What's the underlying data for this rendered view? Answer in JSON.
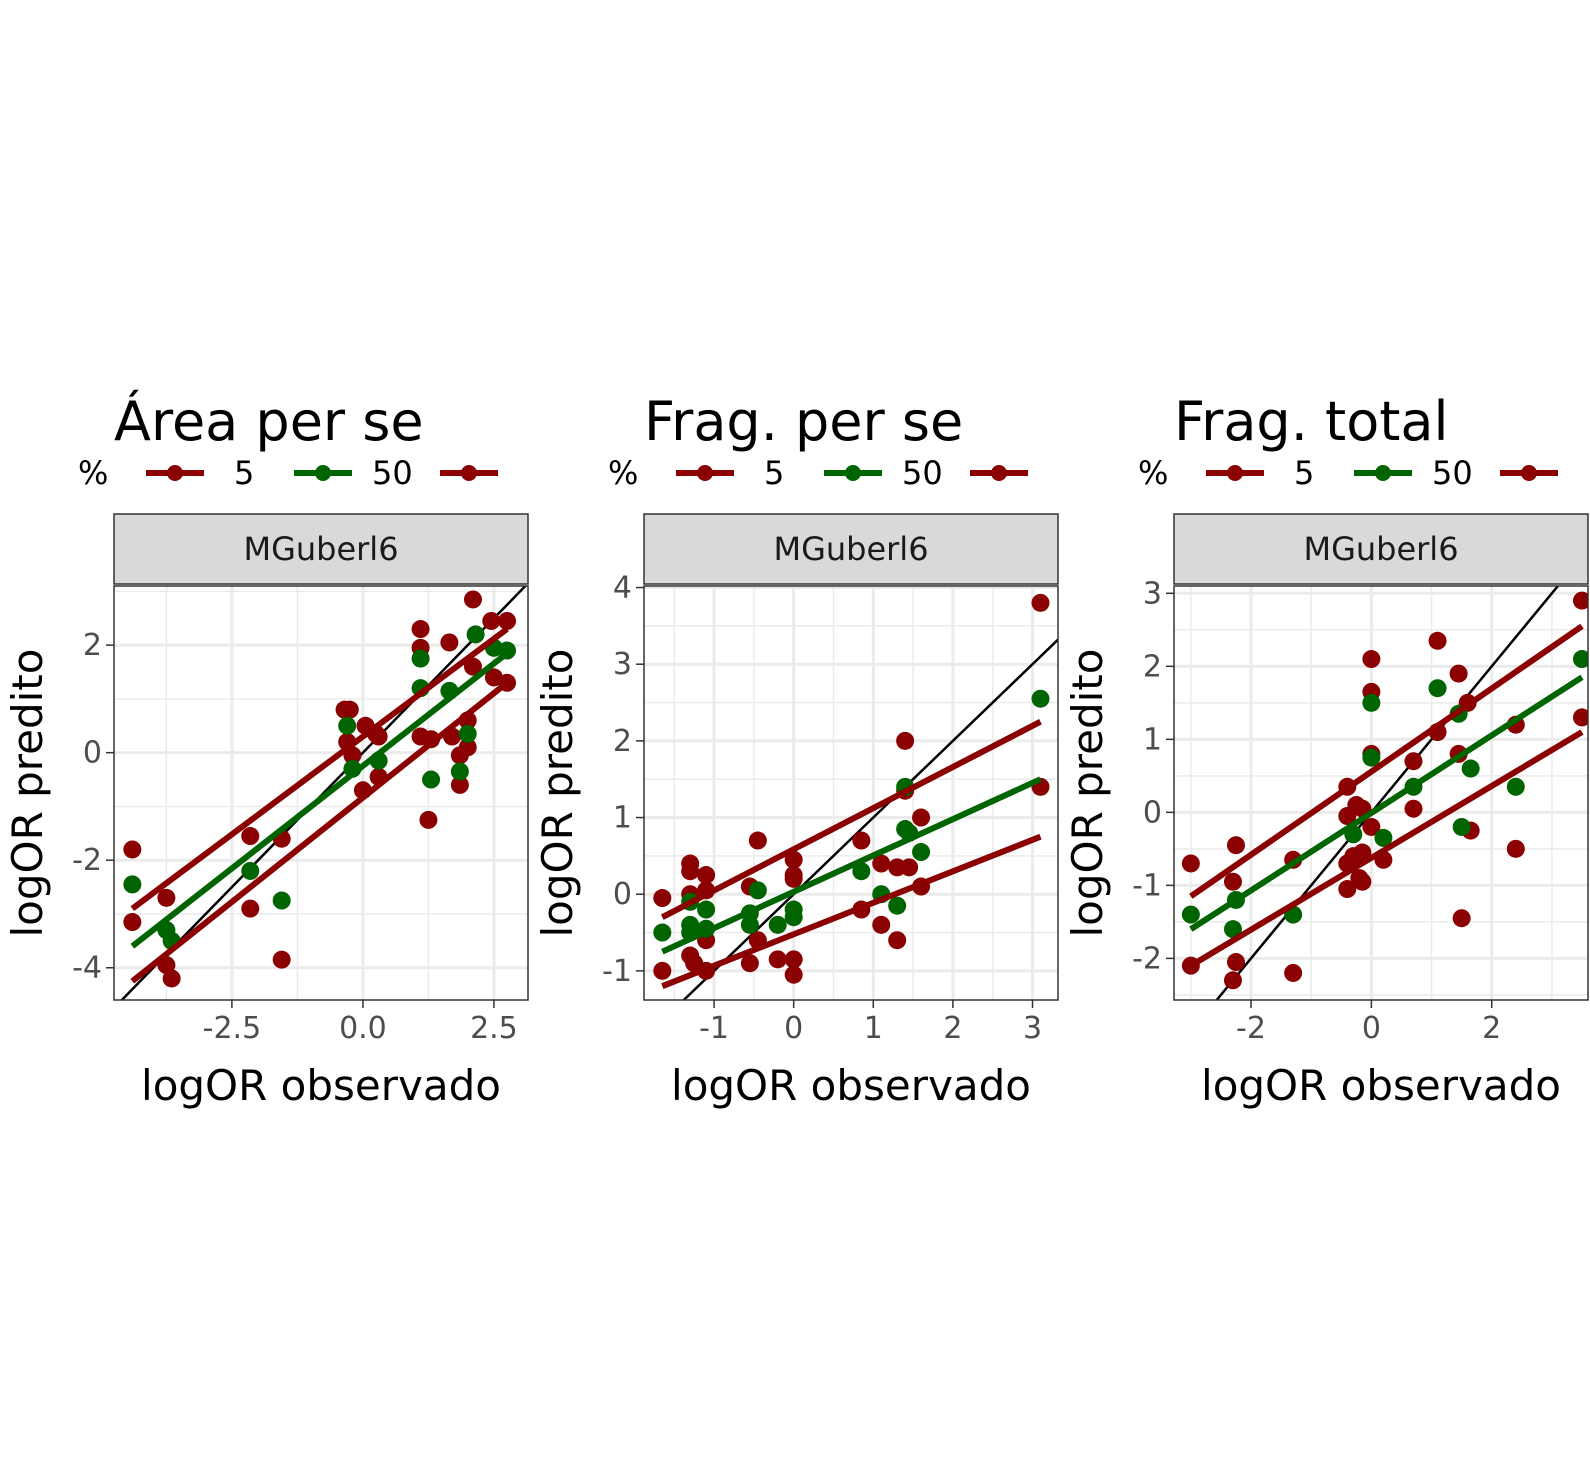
{
  "colors": {
    "low": "#8b0000",
    "mid": "#006400",
    "identity": "#000000",
    "grid": "#ebebeb",
    "strip": "#d9d9d9"
  },
  "chart_data": [
    {
      "type": "scatter",
      "title": "Área per se",
      "strip": "MGuberl6",
      "xlabel": "logOR observado",
      "ylabel": "logOR predito",
      "legend": {
        "title": "%",
        "labels": [
          "5",
          "50",
          ""
        ],
        "placement": "top"
      },
      "xlim": [
        -4.75,
        3.15
      ],
      "ylim": [
        -4.6,
        3.1
      ],
      "xticks": [
        -2.5,
        0.0,
        2.5
      ],
      "xtick_labels": [
        "-2.5",
        "0.0",
        "2.5"
      ],
      "yticks": [
        -4,
        -2,
        0,
        2
      ],
      "ytick_labels": [
        "-4",
        "-2",
        "0",
        "2"
      ],
      "identity_line": true,
      "grid": true,
      "series": [
        {
          "color": "low",
          "points": [
            [
              -4.4,
              -1.8
            ],
            [
              -4.4,
              -3.15
            ],
            [
              -3.75,
              -2.7
            ],
            [
              -3.75,
              -3.95
            ],
            [
              -3.65,
              -4.2
            ],
            [
              -2.15,
              -1.55
            ],
            [
              -2.15,
              -2.9
            ],
            [
              -1.55,
              -1.6
            ],
            [
              -1.55,
              -3.85
            ],
            [
              -0.35,
              0.8
            ],
            [
              -0.3,
              0.2
            ],
            [
              -0.25,
              0.8
            ],
            [
              -0.2,
              -0.05
            ],
            [
              0.0,
              -0.7
            ],
            [
              0.05,
              0.5
            ],
            [
              0.25,
              0.35
            ],
            [
              0.3,
              0.3
            ],
            [
              0.3,
              -0.45
            ],
            [
              1.1,
              2.3
            ],
            [
              1.1,
              1.95
            ],
            [
              1.1,
              0.3
            ],
            [
              1.25,
              -1.25
            ],
            [
              1.3,
              0.25
            ],
            [
              1.65,
              2.05
            ],
            [
              1.7,
              0.3
            ],
            [
              1.85,
              -0.05
            ],
            [
              1.85,
              -0.6
            ],
            [
              2.0,
              0.6
            ],
            [
              2.0,
              0.1
            ],
            [
              2.1,
              2.85
            ],
            [
              2.1,
              1.6
            ],
            [
              2.45,
              2.45
            ],
            [
              2.5,
              1.4
            ],
            [
              2.75,
              2.45
            ],
            [
              2.75,
              1.3
            ]
          ],
          "fit": [
            [
              -4.4,
              -2.9
            ],
            [
              2.75,
              2.3
            ]
          ]
        },
        {
          "color": "mid",
          "points": [
            [
              -4.4,
              -2.45
            ],
            [
              -3.75,
              -3.3
            ],
            [
              -3.65,
              -3.5
            ],
            [
              -2.15,
              -2.2
            ],
            [
              -1.55,
              -2.75
            ],
            [
              -0.3,
              0.5
            ],
            [
              -0.2,
              -0.3
            ],
            [
              0.3,
              -0.15
            ],
            [
              1.1,
              1.75
            ],
            [
              1.1,
              1.2
            ],
            [
              1.3,
              -0.5
            ],
            [
              1.65,
              1.15
            ],
            [
              1.85,
              -0.35
            ],
            [
              2.0,
              0.35
            ],
            [
              2.15,
              2.2
            ],
            [
              2.5,
              1.95
            ],
            [
              2.75,
              1.9
            ]
          ],
          "fit": [
            [
              -4.4,
              -3.6
            ],
            [
              2.75,
              1.85
            ]
          ]
        },
        {
          "color": "low",
          "points": [],
          "fit": [
            [
              -4.4,
              -4.25
            ],
            [
              2.75,
              1.3
            ]
          ]
        }
      ]
    },
    {
      "type": "scatter",
      "title": "Frag. per se",
      "strip": "MGuberl6",
      "xlabel": "logOR observado",
      "ylabel": "logOR predito",
      "legend": {
        "title": "%",
        "labels": [
          "5",
          "50",
          ""
        ],
        "placement": "top"
      },
      "xlim": [
        -1.88,
        3.32
      ],
      "ylim": [
        -1.38,
        4.02
      ],
      "xticks": [
        -1,
        0,
        1,
        2,
        3
      ],
      "xtick_labels": [
        "-1",
        "0",
        "1",
        "2",
        "3"
      ],
      "yticks": [
        -1,
        0,
        1,
        2,
        3,
        4
      ],
      "ytick_labels": [
        "-1",
        "0",
        "1",
        "2",
        "3",
        "4"
      ],
      "identity_line": true,
      "grid": true,
      "series": [
        {
          "color": "low",
          "points": [
            [
              -1.65,
              -0.05
            ],
            [
              -1.65,
              -1.0
            ],
            [
              -1.3,
              0.4
            ],
            [
              -1.3,
              0.3
            ],
            [
              -1.3,
              0.0
            ],
            [
              -1.3,
              -0.8
            ],
            [
              -1.25,
              -0.9
            ],
            [
              -1.1,
              0.25
            ],
            [
              -1.1,
              0.05
            ],
            [
              -1.1,
              -0.6
            ],
            [
              -1.1,
              -1.0
            ],
            [
              -0.55,
              0.1
            ],
            [
              -0.55,
              -0.9
            ],
            [
              -0.45,
              0.7
            ],
            [
              -0.45,
              -0.6
            ],
            [
              -0.2,
              -0.85
            ],
            [
              0.0,
              0.45
            ],
            [
              0.0,
              0.25
            ],
            [
              0.0,
              0.2
            ],
            [
              0.0,
              -0.85
            ],
            [
              0.0,
              -1.05
            ],
            [
              0.85,
              0.7
            ],
            [
              0.85,
              -0.2
            ],
            [
              1.1,
              0.4
            ],
            [
              1.1,
              -0.4
            ],
            [
              1.3,
              0.35
            ],
            [
              1.3,
              -0.6
            ],
            [
              1.4,
              2.0
            ],
            [
              1.4,
              1.35
            ],
            [
              1.45,
              0.35
            ],
            [
              1.6,
              1.0
            ],
            [
              1.6,
              0.1
            ],
            [
              3.1,
              3.8
            ],
            [
              3.1,
              1.4
            ]
          ],
          "fit": [
            [
              -1.65,
              -0.3
            ],
            [
              3.1,
              2.25
            ]
          ]
        },
        {
          "color": "mid",
          "points": [
            [
              -1.65,
              -0.5
            ],
            [
              -1.3,
              -0.1
            ],
            [
              -1.3,
              -0.4
            ],
            [
              -1.3,
              -0.5
            ],
            [
              -1.1,
              -0.2
            ],
            [
              -1.1,
              -0.45
            ],
            [
              -0.55,
              -0.25
            ],
            [
              -0.55,
              -0.4
            ],
            [
              -0.45,
              0.05
            ],
            [
              -0.2,
              -0.4
            ],
            [
              0.0,
              -0.2
            ],
            [
              0.0,
              -0.3
            ],
            [
              0.85,
              0.3
            ],
            [
              1.1,
              0.0
            ],
            [
              1.3,
              -0.15
            ],
            [
              1.4,
              1.4
            ],
            [
              1.4,
              0.85
            ],
            [
              1.45,
              0.8
            ],
            [
              1.6,
              0.55
            ],
            [
              3.1,
              2.55
            ]
          ],
          "fit": [
            [
              -1.65,
              -0.75
            ],
            [
              3.1,
              1.5
            ]
          ]
        },
        {
          "color": "low",
          "points": [],
          "fit": [
            [
              -1.65,
              -1.2
            ],
            [
              3.1,
              0.75
            ]
          ]
        }
      ]
    },
    {
      "type": "scatter",
      "title": "Frag. total",
      "strip": "MGuberl6",
      "xlabel": "logOR observado",
      "ylabel": "logOR predito",
      "legend": {
        "title": "%",
        "labels": [
          "5",
          "50",
          ""
        ],
        "placement": "top"
      },
      "xlim": [
        -3.28,
        3.6
      ],
      "ylim": [
        -2.57,
        3.1
      ],
      "xticks": [
        -2,
        0,
        2
      ],
      "xtick_labels": [
        "-2",
        "0",
        "2"
      ],
      "yticks": [
        -2,
        -1,
        0,
        1,
        2,
        3
      ],
      "ytick_labels": [
        "-2",
        "-1",
        "0",
        "1",
        "2",
        "3"
      ],
      "identity_line": true,
      "grid": true,
      "series": [
        {
          "color": "low",
          "points": [
            [
              -3.0,
              -0.7
            ],
            [
              -3.0,
              -2.1
            ],
            [
              -2.3,
              -0.95
            ],
            [
              -2.3,
              -2.3
            ],
            [
              -2.25,
              -0.45
            ],
            [
              -2.25,
              -2.05
            ],
            [
              -1.3,
              -0.65
            ],
            [
              -1.3,
              -2.2
            ],
            [
              -0.4,
              0.35
            ],
            [
              -0.4,
              -0.05
            ],
            [
              -0.4,
              -0.7
            ],
            [
              -0.4,
              -1.05
            ],
            [
              -0.3,
              -0.6
            ],
            [
              -0.25,
              0.1
            ],
            [
              -0.2,
              -0.9
            ],
            [
              -0.15,
              0.05
            ],
            [
              -0.15,
              -0.55
            ],
            [
              -0.15,
              -0.95
            ],
            [
              0.0,
              2.1
            ],
            [
              0.0,
              1.65
            ],
            [
              0.0,
              0.8
            ],
            [
              0.0,
              -0.2
            ],
            [
              0.2,
              -0.65
            ],
            [
              0.7,
              0.7
            ],
            [
              0.7,
              0.05
            ],
            [
              1.1,
              2.35
            ],
            [
              1.1,
              1.1
            ],
            [
              1.45,
              1.9
            ],
            [
              1.45,
              0.8
            ],
            [
              1.5,
              -1.45
            ],
            [
              1.6,
              1.5
            ],
            [
              1.65,
              -0.25
            ],
            [
              2.4,
              1.2
            ],
            [
              2.4,
              -0.5
            ],
            [
              3.5,
              2.9
            ],
            [
              3.5,
              1.3
            ]
          ],
          "fit": [
            [
              -3.0,
              -1.15
            ],
            [
              3.5,
              2.55
            ]
          ]
        },
        {
          "color": "mid",
          "points": [
            [
              -3.0,
              -1.4
            ],
            [
              -2.3,
              -1.6
            ],
            [
              -2.25,
              -1.2
            ],
            [
              -1.3,
              -1.4
            ],
            [
              -0.3,
              -0.3
            ],
            [
              0.0,
              1.5
            ],
            [
              0.0,
              0.75
            ],
            [
              0.2,
              -0.35
            ],
            [
              0.7,
              0.35
            ],
            [
              1.1,
              1.7
            ],
            [
              1.45,
              1.35
            ],
            [
              1.5,
              -0.2
            ],
            [
              1.65,
              0.6
            ],
            [
              2.4,
              0.35
            ],
            [
              3.5,
              2.1
            ]
          ],
          "fit": [
            [
              -3.0,
              -1.6
            ],
            [
              3.5,
              1.85
            ]
          ]
        },
        {
          "color": "low",
          "points": [],
          "fit": [
            [
              -3.0,
              -2.1
            ],
            [
              3.5,
              1.1
            ]
          ]
        }
      ]
    }
  ]
}
